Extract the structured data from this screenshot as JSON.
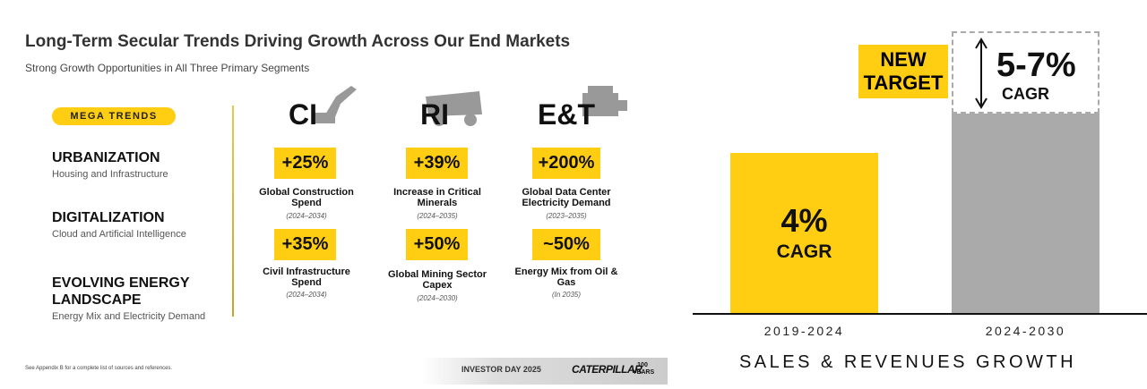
{
  "header": {
    "title": "Long-Term Secular Trends Driving Growth Across Our End Markets",
    "subtitle": "Strong Growth Opportunities in All Three Primary Segments"
  },
  "mega_trends": {
    "label": "MEGA TRENDS",
    "items": [
      {
        "title": "URBANIZATION",
        "subtitle": "Housing and Infrastructure"
      },
      {
        "title": "DIGITALIZATION",
        "subtitle": "Cloud and Artificial Intelligence"
      },
      {
        "title": "EVOLVING ENERGY LANDSCAPE",
        "subtitle": "Energy Mix and Electricity Demand"
      }
    ]
  },
  "segments": [
    {
      "name": "CI",
      "metrics": [
        {
          "value": "+25%",
          "label": "Global Construction Spend",
          "period": "(2024–2034)"
        },
        {
          "value": "+35%",
          "label": "Civil Infrastructure Spend",
          "period": "(2024–2034)"
        }
      ]
    },
    {
      "name": "RI",
      "metrics": [
        {
          "value": "+39%",
          "label": "Increase in Critical Minerals",
          "period": "(2024–2035)"
        },
        {
          "value": "+50%",
          "label": "Global Mining Sector Capex",
          "period": "(2024–2030)"
        }
      ]
    },
    {
      "name": "E&T",
      "metrics": [
        {
          "value": "+200%",
          "label": "Global Data Center Electricity Demand",
          "period": "(2023–2035)"
        },
        {
          "value": "~50%",
          "label": "Energy Mix from Oil & Gas",
          "period": "(In 2035)"
        }
      ]
    }
  ],
  "footer": {
    "note": "See Appendix B for a complete list of sources and references.",
    "event": "INVESTOR DAY 2025",
    "brand": "CATERPILLAR",
    "centennial": "100 YEARS"
  },
  "growth_chart": {
    "title": "SALES & REVENUES GROWTH",
    "bars": [
      {
        "period": "2019-2024",
        "value": "4%",
        "unit": "CAGR"
      },
      {
        "period": "2024-2030",
        "value": "5-7%",
        "unit": "CAGR",
        "badge": [
          "NEW",
          "TARGET"
        ]
      }
    ]
  }
}
